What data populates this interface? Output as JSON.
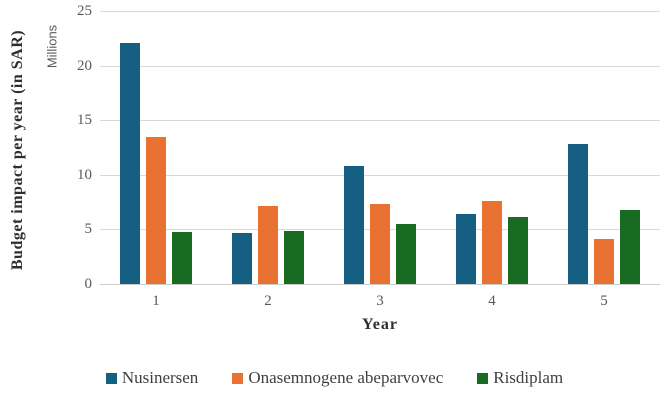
{
  "chart_data": {
    "type": "bar",
    "title": "",
    "xlabel": "Year",
    "ylabel": "Budget impact per year (in SAR)",
    "y_units_label": "Millions",
    "categories": [
      "1",
      "2",
      "3",
      "4",
      "5"
    ],
    "series": [
      {
        "name": "Nusinersen",
        "color": "#156082",
        "values": [
          22.1,
          4.7,
          10.8,
          6.4,
          12.8
        ]
      },
      {
        "name": "Onasemnogene abeparvovec",
        "color": "#E97132",
        "values": [
          13.5,
          7.1,
          7.3,
          7.6,
          4.1
        ]
      },
      {
        "name": "Risdiplam",
        "color": "#196B24",
        "values": [
          4.8,
          4.9,
          5.5,
          6.1,
          6.8
        ]
      }
    ],
    "ylim": [
      0,
      25
    ],
    "yticks": [
      0,
      5,
      10,
      15,
      20,
      25
    ],
    "grid": true,
    "legend_position": "bottom",
    "colors": {
      "gridline": "#d9d9d9",
      "axis_tick_text": "#595959",
      "axis_title_text": "#2e2e2e",
      "background": "#ffffff"
    }
  }
}
